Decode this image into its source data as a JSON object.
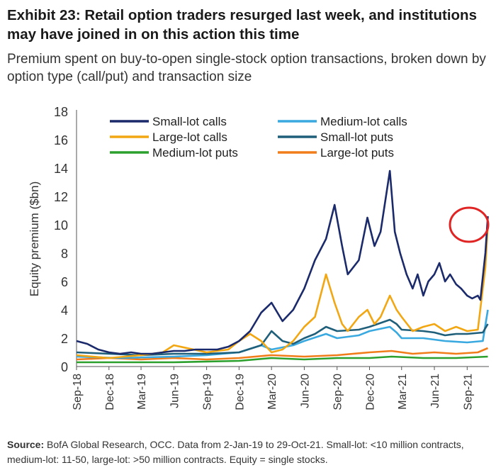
{
  "header": {
    "title": "Exhibit 23: Retail option traders resurged last week, and institutions may have joined in on this action this time",
    "subtitle": "Premium spent on buy-to-open single-stock option transactions, broken down by option type (call/put) and transaction size"
  },
  "footer": {
    "source_label": "Source:",
    "source_text": "BofA Global Research, OCC. Data from 2-Jan-19 to 29-Oct-21. Small-lot: <10 million contracts, medium-lot: 11-50, large-lot: >50 million contracts. Equity = single stocks."
  },
  "chart_data": {
    "type": "line",
    "title": "",
    "xlabel": "",
    "ylabel": "Equity premium ($bn)",
    "ylim": [
      0,
      18
    ],
    "yticks": [
      0,
      2,
      4,
      6,
      8,
      10,
      12,
      14,
      16,
      18
    ],
    "xlim": [
      "2018-09-01",
      "2021-11-01"
    ],
    "xtick_labels": [
      "Sep-18",
      "Dec-18",
      "Mar-19",
      "Jun-19",
      "Sep-19",
      "Dec-19",
      "Mar-20",
      "Jun-20",
      "Sep-20",
      "Dec-20",
      "Mar-21",
      "Jun-21",
      "Sep-21"
    ],
    "xtick_dates": [
      "2018-09-01",
      "2018-12-01",
      "2019-03-01",
      "2019-06-01",
      "2019-09-01",
      "2019-12-01",
      "2020-03-01",
      "2020-06-01",
      "2020-09-01",
      "2020-12-01",
      "2021-03-01",
      "2021-06-01",
      "2021-09-01"
    ],
    "grid": false,
    "legend_position": "top-left",
    "annotation": "red circle around final Small-lot and Large-lot call peaks",
    "series": [
      {
        "name": "Small-lot calls",
        "color": "#1b2a6b",
        "points": [
          [
            "2018-09-01",
            1.8
          ],
          [
            "2018-10-01",
            1.6
          ],
          [
            "2018-11-01",
            1.2
          ],
          [
            "2018-12-01",
            1.0
          ],
          [
            "2019-01-01",
            0.9
          ],
          [
            "2019-02-01",
            1.0
          ],
          [
            "2019-03-01",
            0.9
          ],
          [
            "2019-04-01",
            0.9
          ],
          [
            "2019-05-01",
            1.0
          ],
          [
            "2019-06-01",
            1.1
          ],
          [
            "2019-07-01",
            1.1
          ],
          [
            "2019-08-01",
            1.2
          ],
          [
            "2019-09-01",
            1.2
          ],
          [
            "2019-10-01",
            1.2
          ],
          [
            "2019-11-01",
            1.4
          ],
          [
            "2019-12-01",
            1.8
          ],
          [
            "2020-01-01",
            2.5
          ],
          [
            "2020-02-01",
            3.8
          ],
          [
            "2020-03-01",
            4.5
          ],
          [
            "2020-04-01",
            3.2
          ],
          [
            "2020-05-01",
            4.0
          ],
          [
            "2020-06-01",
            5.5
          ],
          [
            "2020-07-01",
            7.5
          ],
          [
            "2020-08-01",
            9.0
          ],
          [
            "2020-08-25",
            11.4
          ],
          [
            "2020-09-15",
            8.5
          ],
          [
            "2020-10-01",
            6.5
          ],
          [
            "2020-11-01",
            7.5
          ],
          [
            "2020-11-25",
            10.5
          ],
          [
            "2020-12-15",
            8.5
          ],
          [
            "2021-01-01",
            9.5
          ],
          [
            "2021-01-27",
            13.8
          ],
          [
            "2021-02-10",
            9.5
          ],
          [
            "2021-02-25",
            8.0
          ],
          [
            "2021-03-15",
            6.5
          ],
          [
            "2021-04-01",
            5.5
          ],
          [
            "2021-04-15",
            6.5
          ],
          [
            "2021-05-01",
            5.0
          ],
          [
            "2021-05-15",
            6.0
          ],
          [
            "2021-06-01",
            6.5
          ],
          [
            "2021-06-15",
            7.3
          ],
          [
            "2021-07-01",
            6.0
          ],
          [
            "2021-07-15",
            6.5
          ],
          [
            "2021-08-01",
            5.8
          ],
          [
            "2021-08-15",
            5.5
          ],
          [
            "2021-09-01",
            5.0
          ],
          [
            "2021-09-15",
            4.8
          ],
          [
            "2021-10-01",
            5.0
          ],
          [
            "2021-10-08",
            4.7
          ],
          [
            "2021-10-22",
            8.0
          ],
          [
            "2021-10-29",
            10.6
          ]
        ]
      },
      {
        "name": "Medium-lot calls",
        "color": "#39a9e0",
        "points": [
          [
            "2018-09-01",
            0.7
          ],
          [
            "2019-01-01",
            0.6
          ],
          [
            "2019-06-01",
            0.7
          ],
          [
            "2019-09-01",
            0.8
          ],
          [
            "2019-12-01",
            1.0
          ],
          [
            "2020-02-01",
            1.5
          ],
          [
            "2020-03-01",
            1.2
          ],
          [
            "2020-05-01",
            1.5
          ],
          [
            "2020-06-01",
            1.8
          ],
          [
            "2020-08-01",
            2.3
          ],
          [
            "2020-09-01",
            2.0
          ],
          [
            "2020-11-01",
            2.2
          ],
          [
            "2020-12-01",
            2.5
          ],
          [
            "2021-01-27",
            2.8
          ],
          [
            "2021-02-15",
            2.4
          ],
          [
            "2021-03-01",
            2.0
          ],
          [
            "2021-05-01",
            2.0
          ],
          [
            "2021-07-01",
            1.8
          ],
          [
            "2021-09-01",
            1.7
          ],
          [
            "2021-10-15",
            1.8
          ],
          [
            "2021-10-29",
            4.0
          ]
        ]
      },
      {
        "name": "Large-lot calls",
        "color": "#f2a712",
        "points": [
          [
            "2018-09-01",
            0.8
          ],
          [
            "2018-12-01",
            0.6
          ],
          [
            "2019-03-01",
            0.8
          ],
          [
            "2019-05-01",
            1.0
          ],
          [
            "2019-06-01",
            1.5
          ],
          [
            "2019-09-01",
            1.0
          ],
          [
            "2019-11-01",
            1.2
          ],
          [
            "2019-12-01",
            1.8
          ],
          [
            "2020-01-01",
            2.3
          ],
          [
            "2020-02-01",
            1.8
          ],
          [
            "2020-03-01",
            1.0
          ],
          [
            "2020-04-01",
            1.2
          ],
          [
            "2020-05-01",
            1.8
          ],
          [
            "2020-06-01",
            2.8
          ],
          [
            "2020-07-01",
            3.5
          ],
          [
            "2020-08-01",
            6.5
          ],
          [
            "2020-08-25",
            4.5
          ],
          [
            "2020-09-15",
            3.0
          ],
          [
            "2020-10-01",
            2.5
          ],
          [
            "2020-11-01",
            3.5
          ],
          [
            "2020-11-25",
            4.0
          ],
          [
            "2020-12-15",
            3.0
          ],
          [
            "2021-01-01",
            3.5
          ],
          [
            "2021-01-27",
            5.0
          ],
          [
            "2021-02-15",
            4.0
          ],
          [
            "2021-03-01",
            3.5
          ],
          [
            "2021-04-01",
            2.5
          ],
          [
            "2021-05-01",
            2.8
          ],
          [
            "2021-06-01",
            3.0
          ],
          [
            "2021-07-01",
            2.5
          ],
          [
            "2021-08-01",
            2.8
          ],
          [
            "2021-09-01",
            2.5
          ],
          [
            "2021-10-01",
            2.6
          ],
          [
            "2021-10-22",
            7.0
          ],
          [
            "2021-10-29",
            10.0
          ]
        ]
      },
      {
        "name": "Small-lot puts",
        "color": "#1f5f7a",
        "points": [
          [
            "2018-09-01",
            1.0
          ],
          [
            "2018-12-01",
            0.9
          ],
          [
            "2019-03-01",
            0.8
          ],
          [
            "2019-06-01",
            0.9
          ],
          [
            "2019-09-01",
            0.9
          ],
          [
            "2019-12-01",
            1.0
          ],
          [
            "2020-02-01",
            1.5
          ],
          [
            "2020-03-01",
            2.5
          ],
          [
            "2020-04-01",
            1.8
          ],
          [
            "2020-05-01",
            1.6
          ],
          [
            "2020-06-01",
            2.0
          ],
          [
            "2020-07-01",
            2.3
          ],
          [
            "2020-08-01",
            2.8
          ],
          [
            "2020-09-01",
            2.5
          ],
          [
            "2020-11-01",
            2.6
          ],
          [
            "2020-12-01",
            2.8
          ],
          [
            "2021-01-27",
            3.3
          ],
          [
            "2021-02-15",
            3.0
          ],
          [
            "2021-03-01",
            2.6
          ],
          [
            "2021-05-01",
            2.5
          ],
          [
            "2021-06-01",
            2.4
          ],
          [
            "2021-07-01",
            2.2
          ],
          [
            "2021-08-01",
            2.3
          ],
          [
            "2021-09-01",
            2.3
          ],
          [
            "2021-10-15",
            2.4
          ],
          [
            "2021-10-29",
            3.0
          ]
        ]
      },
      {
        "name": "Medium-lot puts",
        "color": "#2ca02c",
        "points": [
          [
            "2018-09-01",
            0.3
          ],
          [
            "2019-01-01",
            0.3
          ],
          [
            "2019-06-01",
            0.3
          ],
          [
            "2019-12-01",
            0.4
          ],
          [
            "2020-03-01",
            0.6
          ],
          [
            "2020-06-01",
            0.5
          ],
          [
            "2020-09-01",
            0.6
          ],
          [
            "2020-12-01",
            0.6
          ],
          [
            "2021-02-01",
            0.7
          ],
          [
            "2021-05-01",
            0.6
          ],
          [
            "2021-08-01",
            0.6
          ],
          [
            "2021-10-29",
            0.7
          ]
        ]
      },
      {
        "name": "Large-lot puts",
        "color": "#f07d1a",
        "points": [
          [
            "2018-09-01",
            0.5
          ],
          [
            "2018-12-01",
            0.6
          ],
          [
            "2019-03-01",
            0.5
          ],
          [
            "2019-06-01",
            0.6
          ],
          [
            "2019-09-01",
            0.5
          ],
          [
            "2019-12-01",
            0.6
          ],
          [
            "2020-03-01",
            0.8
          ],
          [
            "2020-06-01",
            0.7
          ],
          [
            "2020-09-01",
            0.8
          ],
          [
            "2020-12-01",
            1.0
          ],
          [
            "2021-02-01",
            1.1
          ],
          [
            "2021-04-01",
            0.9
          ],
          [
            "2021-06-01",
            1.0
          ],
          [
            "2021-08-01",
            0.9
          ],
          [
            "2021-10-01",
            1.0
          ],
          [
            "2021-10-29",
            1.3
          ]
        ]
      }
    ]
  }
}
